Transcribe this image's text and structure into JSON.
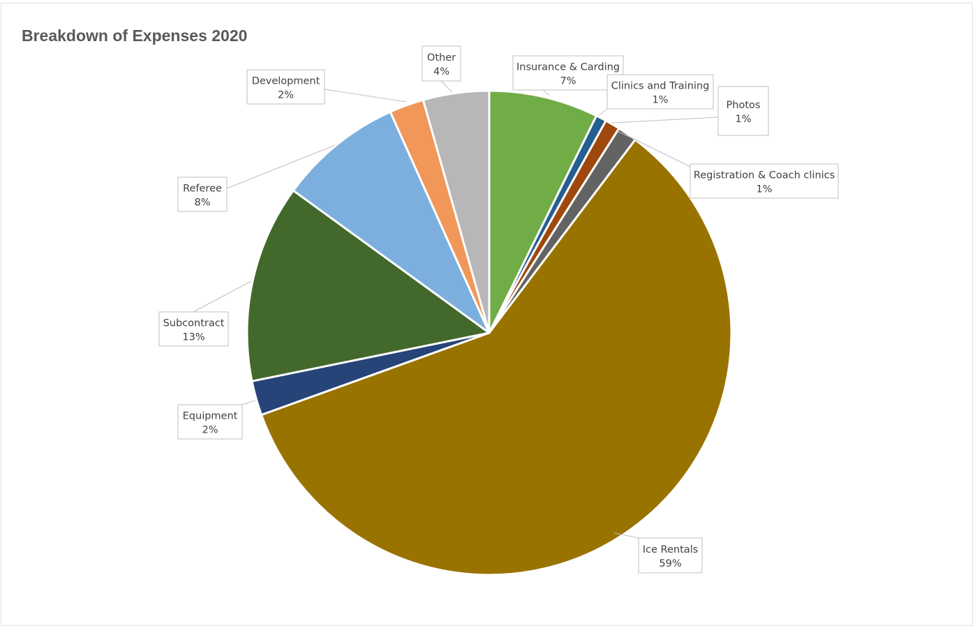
{
  "chart_data": {
    "type": "pie",
    "title": "Breakdown of Expenses 2020",
    "slices": [
      {
        "name": "Insurance & Carding",
        "percent_label": "7%",
        "value": 7.3,
        "color": "#70ad47"
      },
      {
        "name": "Clinics and Training",
        "percent_label": "1%",
        "value": 0.7,
        "color": "#255e91"
      },
      {
        "name": "Photos",
        "percent_label": "1%",
        "value": 1.0,
        "color": "#9e480e"
      },
      {
        "name": "Registration & Coach clinics",
        "percent_label": "1%",
        "value": 1.3,
        "color": "#636363"
      },
      {
        "name": "Ice Rentals",
        "percent_label": "59%",
        "value": 59.2,
        "color": "#997300"
      },
      {
        "name": "Equipment",
        "percent_label": "2%",
        "value": 2.3,
        "color": "#264478"
      },
      {
        "name": "Subcontract",
        "percent_label": "13%",
        "value": 13.2,
        "color": "#43682b"
      },
      {
        "name": "Referee",
        "percent_label": "8%",
        "value": 8.3,
        "color": "#7cafdd"
      },
      {
        "name": "Development",
        "percent_label": "2%",
        "value": 2.3,
        "color": "#f1975a"
      },
      {
        "name": "Other",
        "percent_label": "4%",
        "value": 4.4,
        "color": "#b7b7b7"
      }
    ],
    "legend": "none",
    "data_labels": "callouts"
  }
}
